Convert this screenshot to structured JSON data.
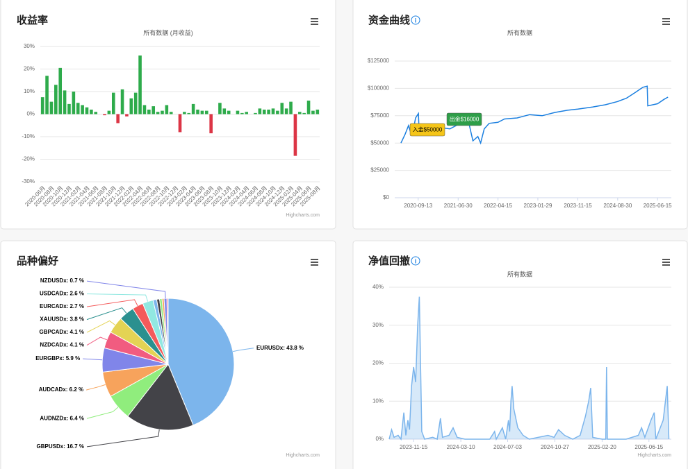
{
  "chart_data": [
    {
      "type": "bar",
      "title": "收益率",
      "subtitle": "所有数据 (月收益)",
      "categories": [
        "2020-06月",
        null,
        "2020-08月",
        null,
        "2020-10月",
        null,
        "2020-12月",
        null,
        "2021-02月",
        null,
        "2021-04月",
        null,
        "2021-06月",
        null,
        "2021-08月",
        null,
        "2021-10月",
        null,
        "2021-12月",
        null,
        "2022-02月",
        null,
        "2022-04月",
        null,
        "2022-06月",
        null,
        "2022-08月",
        null,
        "2022-10月",
        null,
        "2022-12月",
        null,
        "2023-02月",
        null,
        "2023-04月",
        null,
        "2023-06月",
        null,
        "2023-08月",
        null,
        "2023-10月",
        null,
        "2023-12月",
        null,
        "2024-02月",
        null,
        "2024-04月",
        null,
        "2024-06月",
        null,
        "2024-08月",
        null,
        "2024-10月",
        null,
        "2024-12月",
        null,
        "2025-02月",
        null,
        "2025-04月",
        null,
        "2025-06月",
        null,
        "2025-08月"
      ],
      "values": [
        7.5,
        17,
        5.5,
        13,
        20.5,
        10.5,
        4.5,
        10,
        5,
        4,
        3,
        2,
        1,
        0,
        -0.5,
        1.5,
        9.5,
        -4,
        11,
        -1,
        7,
        9.5,
        26,
        4,
        2,
        3.5,
        1,
        1.5,
        4,
        1,
        0,
        -8,
        1,
        0.5,
        4.5,
        2,
        1.5,
        1.5,
        -8.5,
        0,
        5,
        2.5,
        1.5,
        0,
        1.5,
        0.5,
        1,
        0,
        0.5,
        2.5,
        2,
        2,
        2.5,
        1.5,
        5,
        2.5,
        5.5,
        -18.5,
        1,
        0.5,
        6,
        1.5,
        2
      ],
      "color": "#2eab4b",
      "negative_color": "#dc3545",
      "ylim": [
        -30,
        30
      ],
      "yticks": [
        {
          "value": -30,
          "label": "-30%"
        },
        {
          "value": -20,
          "label": "-20%"
        },
        {
          "value": -10,
          "label": "-10%"
        },
        {
          "value": 0,
          "label": "0%"
        },
        {
          "value": 10,
          "label": "10%"
        },
        {
          "value": 20,
          "label": "20%"
        },
        {
          "value": 30,
          "label": "30%"
        }
      ],
      "grid": true,
      "credits": "Highcharts.com"
    },
    {
      "type": "line",
      "title": "资金曲线",
      "subtitle": "所有数据",
      "x": [
        "2020-05-11",
        "2020-06-10",
        "2020-07-05",
        "2020-07-20",
        "2020-08-10",
        "2020-08-25",
        "2020-09-15",
        "2020-09-20",
        "2020-11-10",
        "2021-01-10",
        "2021-03-01",
        "2021-05-01",
        "2021-07-01",
        "2021-08-20",
        "2021-09-20",
        "2021-10-15",
        "2021-11-20",
        "2021-12-10",
        "2022-01-05",
        "2022-02-10",
        "2022-04-15",
        "2022-06-01",
        "2022-09-01",
        "2022-12-01",
        "2023-03-01",
        "2023-06-01",
        "2023-09-01",
        "2023-11-15",
        "2024-03-01",
        "2024-06-01",
        "2024-08-30",
        "2024-11-01",
        "2025-01-01",
        "2025-03-01",
        "2025-04-01",
        "2025-04-05",
        "2025-06-15",
        "2025-08-01",
        "2025-08-30"
      ],
      "values": [
        50000,
        58000,
        66000,
        60000,
        63000,
        73000,
        77000,
        60000,
        62000,
        61000,
        64000,
        63000,
        67000,
        72000,
        66000,
        52000,
        56000,
        50000,
        63000,
        68000,
        69000,
        72000,
        73000,
        76000,
        75000,
        78000,
        80000,
        81000,
        83000,
        85000,
        88000,
        91000,
        96000,
        101000,
        102000,
        84000,
        86000,
        90000,
        92000
      ],
      "color": "#1a7fe0",
      "xlim": [
        "2020-03-27",
        "2025-09-23"
      ],
      "xticks": [
        "2020-09-13",
        "2021-06-30",
        "2022-04-15",
        "2023-01-29",
        "2023-11-15",
        "2024-08-30",
        "2025-06-15"
      ],
      "ylim": [
        0,
        125000
      ],
      "yticks": [
        {
          "value": 0,
          "label": "$0"
        },
        {
          "value": 25000,
          "label": "$25000"
        },
        {
          "value": 50000,
          "label": "$50000"
        },
        {
          "value": 75000,
          "label": "$75000"
        },
        {
          "value": 100000,
          "label": "$100000"
        },
        {
          "value": 125000,
          "label": "$125000"
        }
      ],
      "grid": true,
      "annotations": [
        {
          "text": "入金$50000",
          "color": "#f5c518"
        },
        {
          "text": "出金$16000",
          "color": "#2e9e48"
        }
      ]
    },
    {
      "type": "pie",
      "title": "品种偏好",
      "values": [
        43.8,
        16.7,
        6.4,
        6.2,
        5.9,
        4.1,
        4.1,
        3.8,
        2.7,
        2.6,
        0.9,
        0.7,
        0.6,
        0.5,
        0.7,
        0.3
      ],
      "value_labels": [
        "EURUSDx: 43.8 %",
        "GBPUSDx: 16.7 %",
        "AUDNZDx: 6.4 %",
        "AUDCADx: 6.2 %",
        "EURGBPx: 5.9 %",
        "NZDCADx: 4.1 %",
        "GBPCADx: 4.1 %",
        "XAUUSDx: 3.8 %",
        "EURCADx: 2.7 %",
        "USDCADx: 2.6 %",
        null,
        null,
        null,
        null,
        "NZDUSDx: 0.7 %",
        null
      ],
      "colors": [
        "#7cb5ec",
        "#434348",
        "#90ed7d",
        "#f7a35c",
        "#8085e9",
        "#f15c80",
        "#e4d354",
        "#2b908f",
        "#f45b5b",
        "#91e8e1",
        "#7cb5ec",
        "#434348",
        "#90ed7d",
        "#f7a35c",
        "#8085e9",
        "#f15c80"
      ],
      "credits": "Highcharts.com"
    },
    {
      "type": "area",
      "title": "净值回撤",
      "subtitle": "所有数据",
      "x": [
        "2023-09-16",
        "2023-09-22",
        "2023-09-28",
        "2023-10-08",
        "2023-10-15",
        "2023-10-22",
        "2023-10-27",
        "2023-11-01",
        "2023-11-05",
        "2023-11-10",
        "2023-11-15",
        "2023-11-20",
        "2023-11-25",
        "2023-11-29",
        "2023-12-05",
        "2023-12-12",
        "2024-01-01",
        "2024-01-12",
        "2024-01-20",
        "2024-01-25",
        "2024-02-10",
        "2024-02-20",
        "2024-03-01",
        "2024-03-20",
        "2024-05-20",
        "2024-06-01",
        "2024-06-05",
        "2024-06-20",
        "2024-06-28",
        "2024-07-05",
        "2024-07-08",
        "2024-07-11",
        "2024-07-14",
        "2024-07-18",
        "2024-07-28",
        "2024-08-10",
        "2024-08-25",
        "2024-10-10",
        "2024-10-25",
        "2024-11-05",
        "2024-11-20",
        "2024-12-10",
        "2024-12-28",
        "2025-01-10",
        "2025-01-18",
        "2025-01-23",
        "2025-01-28",
        "2025-02-20",
        "2025-03-01",
        "2025-03-03",
        "2025-03-05",
        "2025-04-20",
        "2025-05-20",
        "2025-05-28",
        "2025-06-05",
        "2025-06-20",
        "2025-06-28",
        "2025-07-02",
        "2025-07-20",
        "2025-07-30",
        "2025-08-03"
      ],
      "values": [
        0,
        2.5,
        0.5,
        1,
        0,
        7,
        1,
        5,
        2.5,
        14,
        19,
        15,
        30,
        37.5,
        2,
        0,
        0.5,
        0,
        5.5,
        0.5,
        1,
        3,
        0.5,
        0,
        0,
        2,
        0,
        3,
        0,
        5,
        2,
        10,
        14,
        8,
        3,
        1,
        0,
        1,
        0.5,
        2.5,
        1,
        0,
        1,
        6,
        10,
        13.5,
        0.5,
        0,
        0,
        19,
        0,
        0,
        1,
        3,
        0.5,
        5,
        7,
        0,
        5,
        14,
        0
      ],
      "color": "#7cb5ec",
      "xlim": [
        "2023-09-16",
        "2025-08-09"
      ],
      "xticks": [
        "2023-11-15",
        "2024-03-10",
        "2024-07-03",
        "2024-10-27",
        "2025-02-20",
        "2025-06-15"
      ],
      "ylim": [
        0,
        40
      ],
      "yticks": [
        {
          "value": 0,
          "label": "0%"
        },
        {
          "value": 10,
          "label": "10%"
        },
        {
          "value": 20,
          "label": "20%"
        },
        {
          "value": 30,
          "label": "30%"
        },
        {
          "value": 40,
          "label": "40%"
        }
      ],
      "grid": true,
      "credits": "Highcharts.com"
    }
  ]
}
